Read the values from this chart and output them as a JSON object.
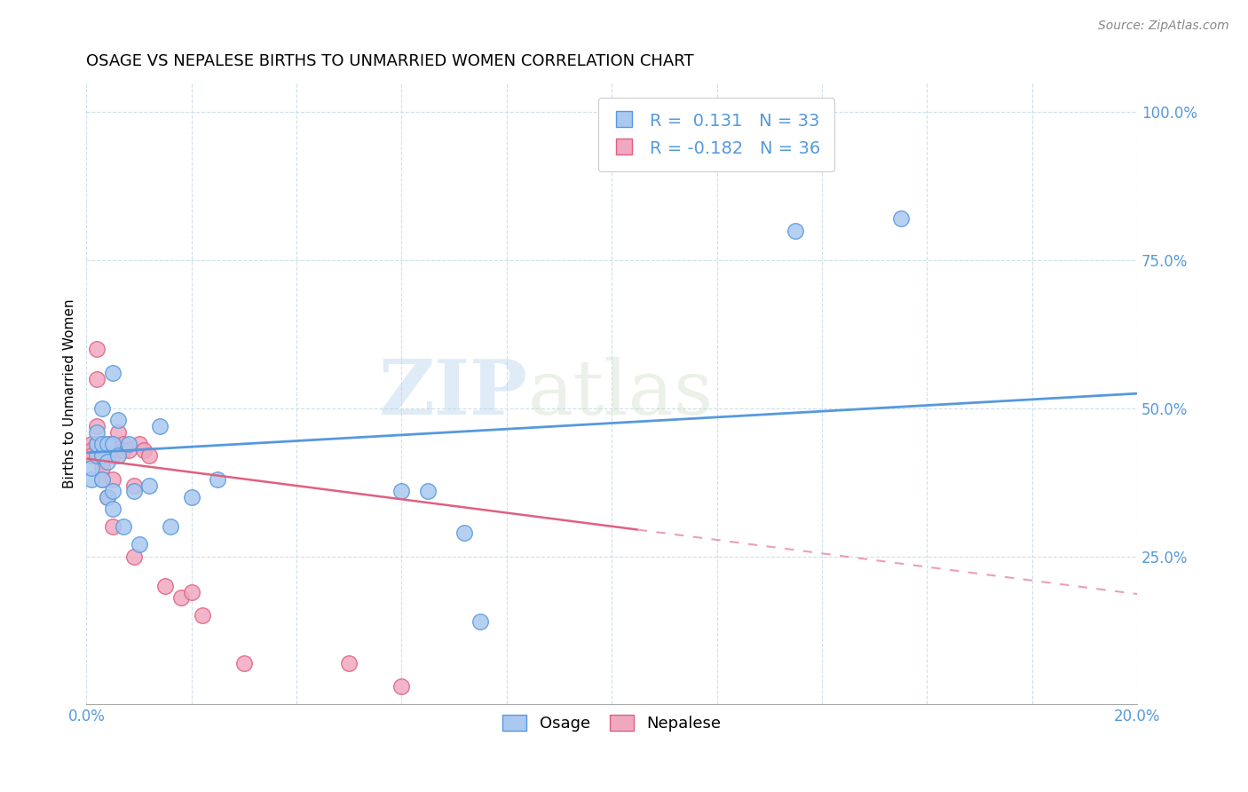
{
  "title": "OSAGE VS NEPALESE BIRTHS TO UNMARRIED WOMEN CORRELATION CHART",
  "source": "Source: ZipAtlas.com",
  "ylabel": "Births to Unmarried Women",
  "yticks": [
    0.0,
    0.25,
    0.5,
    0.75,
    1.0
  ],
  "ytick_labels": [
    "",
    "25.0%",
    "50.0%",
    "75.0%",
    "100.0%"
  ],
  "watermark_zip": "ZIP",
  "watermark_atlas": "atlas",
  "legend_osage_R": " 0.131",
  "legend_osage_N": "33",
  "legend_nepalese_R": "-0.182",
  "legend_nepalese_N": "36",
  "osage_color": "#aac8f0",
  "nepalese_color": "#f0a8c0",
  "osage_line_color": "#5599dd",
  "nepalese_line_color": "#e06080",
  "osage_x": [
    0.001,
    0.001,
    0.002,
    0.002,
    0.002,
    0.003,
    0.003,
    0.003,
    0.003,
    0.004,
    0.004,
    0.004,
    0.005,
    0.005,
    0.005,
    0.005,
    0.006,
    0.006,
    0.007,
    0.008,
    0.009,
    0.01,
    0.012,
    0.014,
    0.016,
    0.02,
    0.025,
    0.06,
    0.065,
    0.072,
    0.075,
    0.135,
    0.155
  ],
  "osage_y": [
    0.38,
    0.4,
    0.42,
    0.44,
    0.46,
    0.38,
    0.42,
    0.44,
    0.5,
    0.35,
    0.41,
    0.44,
    0.33,
    0.36,
    0.44,
    0.56,
    0.42,
    0.48,
    0.3,
    0.44,
    0.36,
    0.27,
    0.37,
    0.47,
    0.3,
    0.35,
    0.38,
    0.36,
    0.36,
    0.29,
    0.14,
    0.8,
    0.82
  ],
  "nepalese_x": [
    0.001,
    0.001,
    0.001,
    0.002,
    0.002,
    0.002,
    0.002,
    0.003,
    0.003,
    0.003,
    0.003,
    0.003,
    0.004,
    0.004,
    0.004,
    0.005,
    0.005,
    0.005,
    0.005,
    0.005,
    0.006,
    0.007,
    0.007,
    0.008,
    0.009,
    0.009,
    0.01,
    0.011,
    0.012,
    0.015,
    0.018,
    0.02,
    0.022,
    0.03,
    0.05,
    0.06
  ],
  "nepalese_y": [
    0.44,
    0.43,
    0.42,
    0.6,
    0.55,
    0.47,
    0.44,
    0.43,
    0.42,
    0.41,
    0.4,
    0.38,
    0.44,
    0.43,
    0.35,
    0.44,
    0.43,
    0.42,
    0.38,
    0.3,
    0.46,
    0.44,
    0.43,
    0.43,
    0.37,
    0.25,
    0.44,
    0.43,
    0.42,
    0.2,
    0.18,
    0.19,
    0.15,
    0.07,
    0.07,
    0.03
  ],
  "xmin": 0.0,
  "xmax": 0.2,
  "ymin": 0.0,
  "ymax": 1.05,
  "blue_line_x0": 0.0,
  "blue_line_y0": 0.425,
  "blue_line_x1": 0.2,
  "blue_line_y1": 0.525,
  "pink_line_x0": 0.0,
  "pink_line_y0": 0.415,
  "pink_line_x1": 0.105,
  "pink_line_y1": 0.295
}
